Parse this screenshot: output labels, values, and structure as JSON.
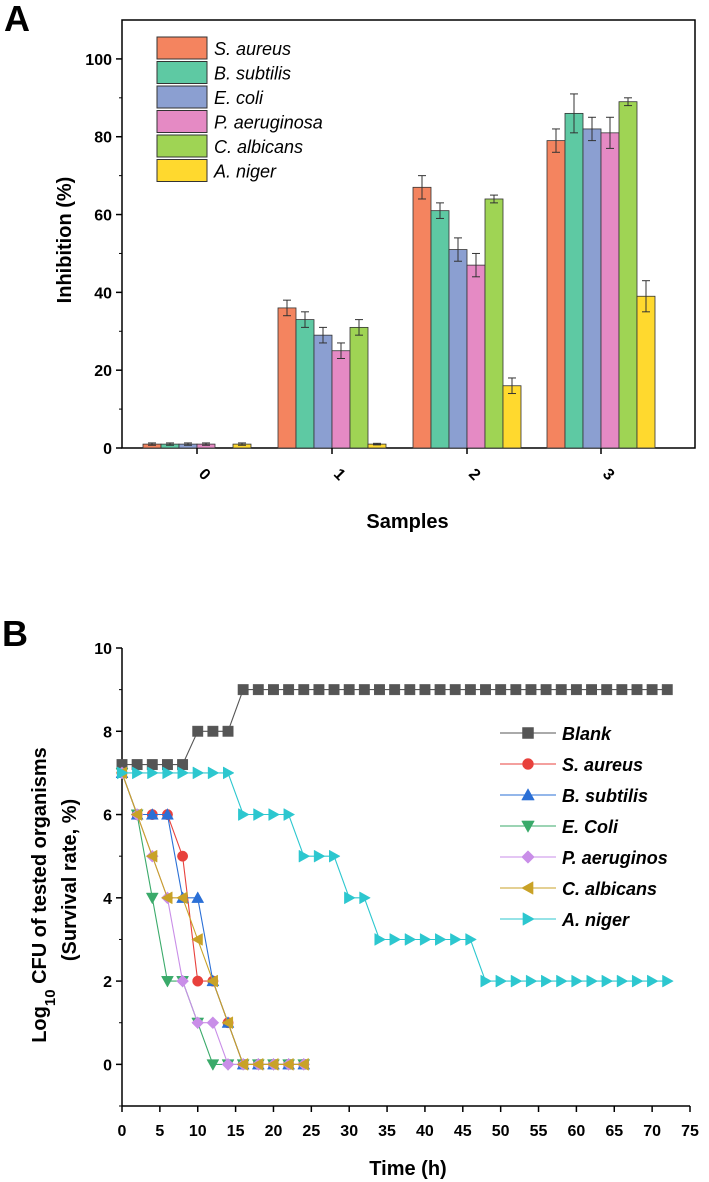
{
  "chart_data": [
    {
      "panel": "A",
      "type": "bar",
      "title": "",
      "xlabel": "Samples",
      "ylabel": "Inhibition (%)",
      "categories": [
        "0",
        "1",
        "2",
        "3"
      ],
      "ylim": [
        0,
        110
      ],
      "yticks": [
        0,
        20,
        40,
        60,
        80,
        100
      ],
      "legend_position": "top-left",
      "series": [
        {
          "name": "S. aureus",
          "color": "#f4845f",
          "values": [
            1,
            36,
            67,
            79
          ],
          "errors": [
            0.3,
            2,
            3,
            3
          ]
        },
        {
          "name": "B. subtilis",
          "color": "#5ec9a3",
          "values": [
            1,
            33,
            61,
            86
          ],
          "errors": [
            0.3,
            2,
            2,
            5
          ]
        },
        {
          "name": "E. coli",
          "color": "#8b9fd1",
          "values": [
            1,
            29,
            51,
            82
          ],
          "errors": [
            0.3,
            2,
            3,
            3
          ]
        },
        {
          "name": "P. aeruginosa",
          "color": "#e58ac4",
          "values": [
            1,
            25,
            47,
            81
          ],
          "errors": [
            0.3,
            2,
            3,
            4
          ]
        },
        {
          "name": "C. albicans",
          "color": "#9fd454",
          "values": [
            0,
            31,
            64,
            89
          ],
          "errors": [
            0,
            2,
            1,
            1
          ]
        },
        {
          "name": "A. niger",
          "color": "#ffd92e",
          "values": [
            1,
            1,
            16,
            39
          ],
          "errors": [
            0.3,
            0.2,
            2,
            4
          ]
        }
      ]
    },
    {
      "panel": "B",
      "type": "line",
      "title": "",
      "xlabel": "Time (h)",
      "ylabel_line1": "Log10 CFU of tested organisms",
      "ylabel_line2": "(Survival rate, %)",
      "xlim": [
        0,
        75
      ],
      "ylim": [
        -1,
        10
      ],
      "xticks": [
        0,
        5,
        10,
        15,
        20,
        25,
        30,
        35,
        40,
        45,
        50,
        55,
        60,
        65,
        70,
        75
      ],
      "yticks": [
        0,
        2,
        4,
        6,
        8,
        10
      ],
      "legend_position": "right",
      "series": [
        {
          "name": "Blank",
          "color": "#555555",
          "marker": "square",
          "x": [
            0,
            2,
            4,
            6,
            8,
            10,
            12,
            14,
            16,
            18,
            20,
            22,
            24,
            26,
            28,
            30,
            32,
            34,
            36,
            38,
            40,
            42,
            44,
            46,
            48,
            50,
            52,
            54,
            56,
            58,
            60,
            62,
            64,
            66,
            68,
            70,
            72
          ],
          "y": [
            7.2,
            7.2,
            7.2,
            7.2,
            7.2,
            8,
            8,
            8,
            9,
            9,
            9,
            9,
            9,
            9,
            9,
            9,
            9,
            9,
            9,
            9,
            9,
            9,
            9,
            9,
            9,
            9,
            9,
            9,
            9,
            9,
            9,
            9,
            9,
            9,
            9,
            9,
            9
          ]
        },
        {
          "name": "S. aureus",
          "color": "#e8413c",
          "marker": "circle",
          "x": [
            0,
            2,
            4,
            6,
            8,
            10,
            12,
            14,
            16,
            18,
            20,
            22,
            24
          ],
          "y": [
            7,
            6,
            6,
            6,
            5,
            2,
            2,
            1,
            0,
            0,
            0,
            0,
            0
          ]
        },
        {
          "name": "B. subtilis",
          "color": "#2a6fd6",
          "marker": "triangle-up",
          "x": [
            0,
            2,
            4,
            6,
            8,
            10,
            12,
            14,
            16,
            18,
            20,
            22,
            24
          ],
          "y": [
            7,
            6,
            6,
            6,
            4,
            4,
            2,
            1,
            0,
            0,
            0,
            0,
            0
          ]
        },
        {
          "name": "E. Coli",
          "color": "#3aaa6a",
          "marker": "triangle-down",
          "x": [
            0,
            2,
            4,
            6,
            8,
            10,
            12,
            14,
            16,
            18,
            20,
            22,
            24
          ],
          "y": [
            7,
            6,
            4,
            2,
            2,
            1,
            0,
            0,
            0,
            0,
            0,
            0,
            0
          ]
        },
        {
          "name": "P. aeruginos",
          "color": "#c98ee8",
          "marker": "diamond",
          "x": [
            0,
            2,
            4,
            6,
            8,
            10,
            12,
            14,
            16,
            18,
            20,
            22,
            24
          ],
          "y": [
            7,
            6,
            5,
            4,
            2,
            1,
            1,
            0,
            0,
            0,
            0,
            0,
            0
          ]
        },
        {
          "name": "C. albicans",
          "color": "#c9a227",
          "marker": "triangle-left",
          "x": [
            0,
            2,
            4,
            6,
            8,
            10,
            12,
            14,
            16,
            18,
            20,
            22,
            24
          ],
          "y": [
            7,
            6,
            5,
            4,
            4,
            3,
            2,
            1,
            0,
            0,
            0,
            0,
            0
          ]
        },
        {
          "name": "A. niger",
          "color": "#2cc7cf",
          "marker": "triangle-right",
          "x": [
            0,
            2,
            4,
            6,
            8,
            10,
            12,
            14,
            16,
            18,
            20,
            22,
            24,
            26,
            28,
            30,
            32,
            34,
            36,
            38,
            40,
            42,
            44,
            46,
            48,
            50,
            52,
            54,
            56,
            58,
            60,
            62,
            64,
            66,
            68,
            70,
            72
          ],
          "y": [
            7,
            7,
            7,
            7,
            7,
            7,
            7,
            7,
            6,
            6,
            6,
            6,
            5,
            5,
            5,
            4,
            4,
            3,
            3,
            3,
            3,
            3,
            3,
            3,
            2,
            2,
            2,
            2,
            2,
            2,
            2,
            2,
            2,
            2,
            2,
            2,
            2
          ]
        }
      ]
    }
  ]
}
